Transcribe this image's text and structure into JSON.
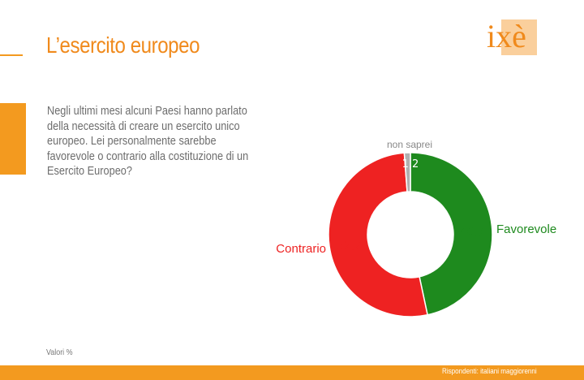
{
  "slide": {
    "title": "L’esercito europeo",
    "logo_text": "ixè",
    "question_lines": [
      "Negli ultimi mesi alcuni Paesi hanno parlato",
      "della necessità di creare un esercito unico",
      "europeo. Lei personalmente sarebbe",
      "favorevole o contrario alla costituzione di un",
      "Esercito Europeo?"
    ],
    "footer_note": "Valori %",
    "respondents": "Rispondenti: italiani maggiorenni"
  },
  "chart_data": {
    "type": "pie",
    "variant": "donut",
    "title": "",
    "series": [
      {
        "name": "Favorevole",
        "value": 46.7,
        "display": "46,7",
        "color": "#1e8a1e"
      },
      {
        "name": "Contrario",
        "value": 52.2,
        "display": "52,2",
        "color": "#ee2222"
      },
      {
        "name": "non saprei",
        "value": 1.2,
        "display": "1,2",
        "color": "#b0b0b0"
      }
    ],
    "legend": "labels beside slices",
    "unit": "%"
  }
}
